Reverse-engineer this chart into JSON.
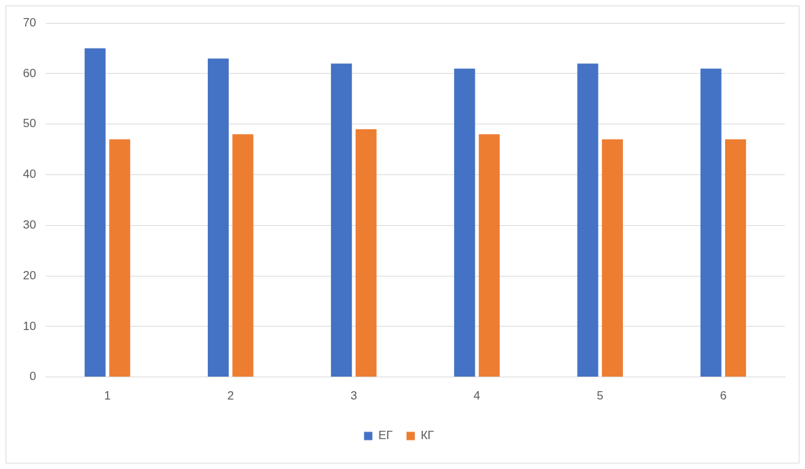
{
  "chart_data": {
    "type": "bar",
    "categories": [
      "1",
      "2",
      "3",
      "4",
      "5",
      "6"
    ],
    "series": [
      {
        "name": "ЕГ",
        "color": "#4472c4",
        "values": [
          65,
          63,
          62,
          61,
          62,
          61
        ]
      },
      {
        "name": "КГ",
        "color": "#ed7d31",
        "values": [
          47,
          48,
          49,
          48,
          47,
          47
        ]
      }
    ],
    "ylim": [
      0,
      70
    ],
    "yticks": [
      0,
      10,
      20,
      30,
      40,
      50,
      60,
      70
    ],
    "grid": "y",
    "legend": "bottom"
  }
}
